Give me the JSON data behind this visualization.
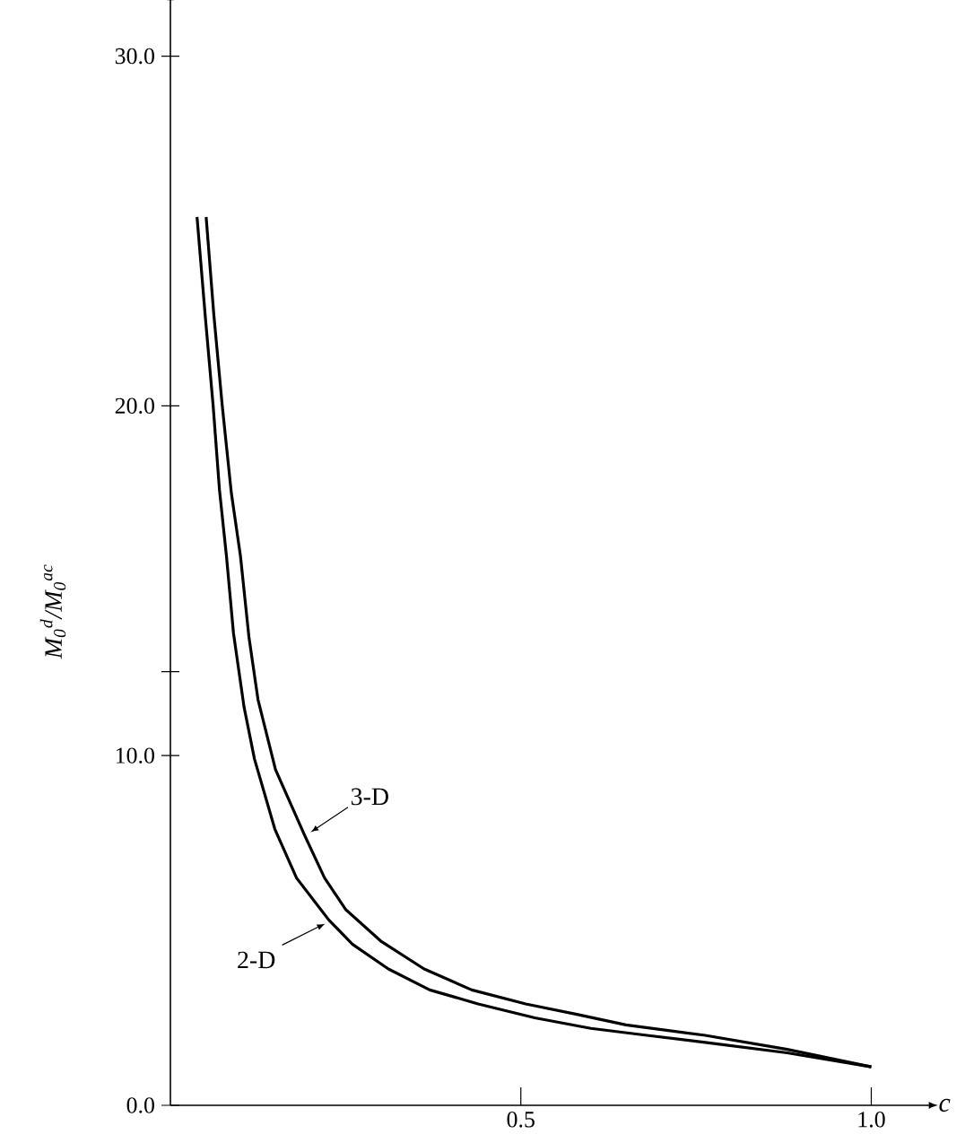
{
  "chart_data": {
    "type": "line",
    "xlabel": "c",
    "ylabel": "*M*$_{0}$$^{d}$/*M*$_{0}$$^{ac}$",
    "xlim": [
      0,
      1.08
    ],
    "ylim": [
      0,
      31.4
    ],
    "xticks": [
      {
        "value": 0.5,
        "label": "0.5"
      },
      {
        "value": 1.0,
        "label": "1.0"
      }
    ],
    "yticks": [
      {
        "value": 0,
        "label": "0.0"
      },
      {
        "value": 10,
        "label": "10.0"
      },
      {
        "value": 12.4,
        "label": null
      },
      {
        "value": 20,
        "label": "20.0"
      },
      {
        "value": 30,
        "label": "30.0"
      }
    ],
    "grid": false,
    "line_style": "solid",
    "series": [
      {
        "name": "3-D",
        "color": "#000000",
        "x": [
          0.051,
          0.062,
          0.074,
          0.087,
          0.1,
          0.112,
          0.125,
          0.15,
          0.192,
          0.22,
          0.25,
          0.3,
          0.362,
          0.43,
          0.507,
          0.58,
          0.65,
          0.763,
          0.88,
          1.0
        ],
        "values": [
          25.4,
          22.6,
          20.0,
          17.5,
          15.7,
          13.4,
          11.6,
          9.6,
          7.7,
          6.5,
          5.6,
          4.7,
          3.9,
          3.3,
          2.9,
          2.6,
          2.3,
          2.0,
          1.6,
          1.1
        ]
      },
      {
        "name": "2-D",
        "color": "#000000",
        "x": [
          0.038,
          0.05,
          0.061,
          0.07,
          0.08,
          0.09,
          0.105,
          0.12,
          0.149,
          0.18,
          0.226,
          0.26,
          0.311,
          0.37,
          0.439,
          0.52,
          0.6,
          0.68,
          0.763,
          0.88,
          1.0
        ],
        "values": [
          25.4,
          22.5,
          20.0,
          17.6,
          15.7,
          13.5,
          11.4,
          9.9,
          7.9,
          6.5,
          5.3,
          4.6,
          3.9,
          3.3,
          2.9,
          2.5,
          2.2,
          2.0,
          1.8,
          1.5,
          1.1
        ]
      }
    ]
  }
}
